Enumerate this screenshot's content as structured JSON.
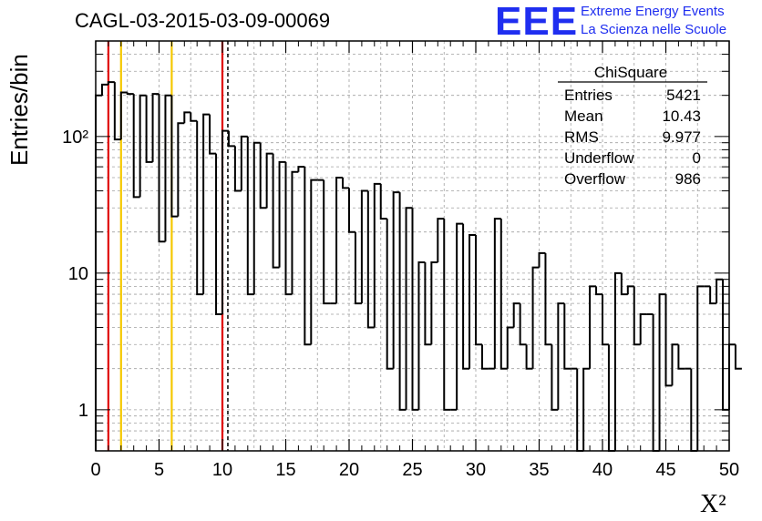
{
  "header": {
    "title": "CAGL-03-2015-03-09-00069",
    "logo_text": "EEE",
    "tagline_line1": "Extreme Energy Events",
    "tagline_line2": "La Scienza nelle Scuole"
  },
  "colors": {
    "brand_blue": "#1f2ef0",
    "cut_red": "#e00000",
    "cut_yellow": "#f5c800",
    "grid_gray": "#a0a0a0",
    "histogram_line": "#000000"
  },
  "stats_box": {
    "title": "ChiSquare",
    "rows": [
      {
        "label": "Entries",
        "value": "5421"
      },
      {
        "label": "Mean",
        "value": "10.43"
      },
      {
        "label": "RMS",
        "value": "9.977"
      },
      {
        "label": "Underflow",
        "value": "0"
      },
      {
        "label": "Overflow",
        "value": "986"
      }
    ]
  },
  "chart_data": {
    "type": "histogram",
    "xlabel": "X²",
    "ylabel": "Entries/bin",
    "xlim": [
      0,
      50
    ],
    "ylim": [
      0.5,
      500
    ],
    "yscale": "log",
    "grid": true,
    "bin_width": 0.5,
    "x_ticks": [
      "0",
      "5",
      "10",
      "15",
      "20",
      "25",
      "30",
      "35",
      "40",
      "45",
      "50"
    ],
    "y_ticks": [
      {
        "value": 1,
        "label": "1"
      },
      {
        "value": 10,
        "label": "10"
      },
      {
        "value": 100,
        "label": "10²"
      }
    ],
    "values": [
      200,
      240,
      250,
      95,
      210,
      205,
      36,
      200,
      65,
      205,
      17,
      200,
      26,
      125,
      150,
      130,
      7,
      145,
      75,
      5,
      110,
      85,
      40,
      100,
      7,
      90,
      30,
      75,
      11,
      65,
      7,
      55,
      60,
      3,
      48,
      48,
      6,
      6,
      50,
      42,
      20,
      6,
      40,
      4,
      45,
      25,
      2,
      39,
      1,
      30,
      1,
      12,
      3,
      12,
      25,
      1,
      1,
      23,
      2,
      19,
      3,
      2,
      2,
      25,
      2,
      4,
      6,
      3,
      2,
      11,
      14,
      3,
      1,
      6,
      2,
      2,
      0,
      2,
      8,
      7,
      3,
      0,
      10,
      7,
      8,
      3,
      5,
      5,
      0,
      7,
      1.5,
      3,
      2,
      2,
      0,
      8,
      8,
      6,
      9,
      1,
      3,
      2
    ],
    "vlines": [
      {
        "x": 1,
        "color": "#e00000",
        "style": "solid"
      },
      {
        "x": 2,
        "color": "#f5c800",
        "style": "solid"
      },
      {
        "x": 6,
        "color": "#f5c800",
        "style": "solid"
      },
      {
        "x": 10,
        "color": "#e00000",
        "style": "solid"
      },
      {
        "x": 10.43,
        "color": "#000000",
        "style": "dashed"
      }
    ]
  }
}
